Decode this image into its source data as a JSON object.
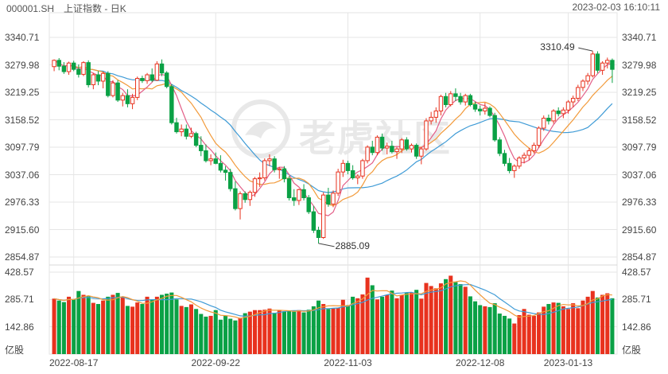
{
  "header": {
    "title": "000001.SH　上证指数 - 日K",
    "timestamp": "2023-02-03 16:10:11"
  },
  "colors": {
    "up": "#e8321e",
    "down": "#0aa145",
    "ma5": "#e35f88",
    "ma10": "#f29a3a",
    "ma20": "#3f9bd6",
    "grid": "#e6e6e6"
  },
  "watermark": {
    "text": "老虎社区",
    "icon": "tiger-logo-icon"
  },
  "chart_data": {
    "type": "candlestick",
    "price_axis": {
      "ticks": [
        "3340.71",
        "3279.98",
        "3219.25",
        "3158.52",
        "3097.79",
        "3037.06",
        "2976.33",
        "2915.60",
        "2854.87"
      ],
      "ylim": [
        2854.87,
        3340.71
      ]
    },
    "volume_axis": {
      "ticks": [
        "428.57",
        "285.71",
        "142.86"
      ],
      "unit": "亿股",
      "ylim": [
        0,
        428.57
      ]
    },
    "x_ticks": [
      "2022-08-17",
      "2022-09-22",
      "2022-11-03",
      "2022-12-08",
      "2023-01-13"
    ],
    "annotations": [
      {
        "text": "3310.49",
        "price": 3310.49,
        "type": "max"
      },
      {
        "text": "2885.09",
        "price": 2885.09,
        "type": "min"
      }
    ],
    "ohlc": [
      [
        3276,
        3292,
        3266,
        3290
      ],
      [
        3290,
        3295,
        3268,
        3277
      ],
      [
        3277,
        3286,
        3260,
        3265
      ],
      [
        3265,
        3287,
        3258,
        3284
      ],
      [
        3284,
        3289,
        3266,
        3270
      ],
      [
        3270,
        3281,
        3252,
        3259
      ],
      [
        3259,
        3288,
        3255,
        3285
      ],
      [
        3285,
        3290,
        3230,
        3236
      ],
      [
        3236,
        3262,
        3226,
        3258
      ],
      [
        3258,
        3266,
        3235,
        3244
      ],
      [
        3244,
        3265,
        3228,
        3261
      ],
      [
        3261,
        3266,
        3208,
        3212
      ],
      [
        3212,
        3246,
        3208,
        3240
      ],
      [
        3240,
        3246,
        3198,
        3202
      ],
      [
        3202,
        3218,
        3188,
        3212
      ],
      [
        3212,
        3226,
        3186,
        3194
      ],
      [
        3194,
        3216,
        3182,
        3208
      ],
      [
        3208,
        3254,
        3202,
        3250
      ],
      [
        3250,
        3256,
        3240,
        3245
      ],
      [
        3245,
        3262,
        3238,
        3258
      ],
      [
        3258,
        3272,
        3242,
        3246
      ],
      [
        3246,
        3288,
        3244,
        3282
      ],
      [
        3282,
        3292,
        3255,
        3262
      ],
      [
        3262,
        3266,
        3228,
        3232
      ],
      [
        3232,
        3237,
        3148,
        3152
      ],
      [
        3152,
        3163,
        3128,
        3132
      ],
      [
        3132,
        3148,
        3122,
        3138
      ],
      [
        3138,
        3148,
        3115,
        3122
      ],
      [
        3122,
        3141,
        3118,
        3128
      ],
      [
        3128,
        3132,
        3098,
        3102
      ],
      [
        3102,
        3122,
        3078,
        3090
      ],
      [
        3090,
        3104,
        3064,
        3068
      ],
      [
        3068,
        3082,
        3058,
        3072
      ],
      [
        3072,
        3086,
        3060,
        3062
      ],
      [
        3062,
        3080,
        3042,
        3047
      ],
      [
        3047,
        3056,
        3024,
        3042
      ],
      [
        3042,
        3050,
        3000,
        3006
      ],
      [
        3006,
        3022,
        2958,
        2962
      ],
      [
        2962,
        3000,
        2938,
        2995
      ],
      [
        2995,
        3000,
        2975,
        2982
      ],
      [
        2982,
        3002,
        2968,
        2998
      ],
      [
        2998,
        3032,
        2988,
        3028
      ],
      [
        3028,
        3042,
        3010,
        3030
      ],
      [
        3030,
        3073,
        3024,
        3068
      ],
      [
        3068,
        3082,
        3056,
        3072
      ],
      [
        3072,
        3078,
        3042,
        3048
      ],
      [
        3048,
        3054,
        3028,
        3050
      ],
      [
        3050,
        3056,
        3020,
        3028
      ],
      [
        3028,
        3034,
        2980,
        2986
      ],
      [
        2986,
        3005,
        2968,
        2980
      ],
      [
        2980,
        3006,
        2970,
        3004
      ],
      [
        3004,
        3016,
        2980,
        2986
      ],
      [
        2986,
        2992,
        2950,
        2955
      ],
      [
        2955,
        2968,
        2908,
        2914
      ],
      [
        2914,
        2922,
        2885,
        2898
      ],
      [
        2898,
        2998,
        2895,
        2992
      ],
      [
        2992,
        3008,
        2966,
        2972
      ],
      [
        2972,
        3002,
        2965,
        2996
      ],
      [
        2996,
        3050,
        2990,
        3043
      ],
      [
        3043,
        3070,
        3032,
        3062
      ],
      [
        3062,
        3068,
        3038,
        3046
      ],
      [
        3046,
        3058,
        3026,
        3030
      ],
      [
        3030,
        3038,
        3016,
        3034
      ],
      [
        3034,
        3072,
        3028,
        3068
      ],
      [
        3068,
        3102,
        3062,
        3098
      ],
      [
        3098,
        3112,
        3080,
        3086
      ],
      [
        3086,
        3124,
        3080,
        3120
      ],
      [
        3120,
        3128,
        3090,
        3096
      ],
      [
        3096,
        3108,
        3082,
        3100
      ],
      [
        3100,
        3112,
        3084,
        3088
      ],
      [
        3088,
        3098,
        3072,
        3094
      ],
      [
        3094,
        3118,
        3085,
        3114
      ],
      [
        3114,
        3120,
        3090,
        3094
      ],
      [
        3094,
        3106,
        3086,
        3102
      ],
      [
        3102,
        3106,
        3072,
        3078
      ],
      [
        3078,
        3098,
        3060,
        3094
      ],
      [
        3094,
        3162,
        3090,
        3156
      ],
      [
        3156,
        3176,
        3148,
        3164
      ],
      [
        3164,
        3186,
        3152,
        3178
      ],
      [
        3178,
        3214,
        3168,
        3210
      ],
      [
        3210,
        3218,
        3186,
        3192
      ],
      [
        3192,
        3222,
        3188,
        3216
      ],
      [
        3216,
        3228,
        3200,
        3210
      ],
      [
        3210,
        3218,
        3192,
        3198
      ],
      [
        3198,
        3216,
        3190,
        3212
      ],
      [
        3212,
        3216,
        3188,
        3192
      ],
      [
        3192,
        3198,
        3176,
        3182
      ],
      [
        3182,
        3190,
        3168,
        3178
      ],
      [
        3178,
        3196,
        3170,
        3184
      ],
      [
        3184,
        3188,
        3164,
        3168
      ],
      [
        3168,
        3174,
        3110,
        3114
      ],
      [
        3114,
        3120,
        3078,
        3084
      ],
      [
        3084,
        3092,
        3056,
        3062
      ],
      [
        3062,
        3074,
        3040,
        3046
      ],
      [
        3046,
        3060,
        3030,
        3056
      ],
      [
        3056,
        3078,
        3050,
        3074
      ],
      [
        3074,
        3086,
        3062,
        3080
      ],
      [
        3080,
        3096,
        3070,
        3090
      ],
      [
        3090,
        3108,
        3084,
        3102
      ],
      [
        3102,
        3144,
        3096,
        3140
      ],
      [
        3140,
        3168,
        3134,
        3162
      ],
      [
        3162,
        3170,
        3148,
        3156
      ],
      [
        3156,
        3182,
        3150,
        3178
      ],
      [
        3178,
        3186,
        3166,
        3172
      ],
      [
        3172,
        3186,
        3162,
        3180
      ],
      [
        3180,
        3202,
        3172,
        3198
      ],
      [
        3198,
        3212,
        3186,
        3206
      ],
      [
        3206,
        3236,
        3200,
        3230
      ],
      [
        3230,
        3248,
        3222,
        3244
      ],
      [
        3244,
        3262,
        3236,
        3256
      ],
      [
        3256,
        3310,
        3252,
        3304
      ],
      [
        3304,
        3310,
        3262,
        3268
      ],
      [
        3268,
        3288,
        3258,
        3284
      ],
      [
        3284,
        3296,
        3272,
        3290
      ],
      [
        3290,
        3294,
        3240,
        3270
      ]
    ],
    "volume": [
      290,
      280,
      272,
      300,
      286,
      330,
      310,
      302,
      268,
      262,
      280,
      300,
      310,
      320,
      296,
      252,
      248,
      270,
      262,
      300,
      286,
      300,
      310,
      316,
      322,
      286,
      252,
      246,
      260,
      236,
      210,
      196,
      200,
      230,
      180,
      200,
      185,
      176,
      190,
      214,
      222,
      230,
      230,
      232,
      238,
      216,
      230,
      224,
      226,
      222,
      230,
      218,
      232,
      250,
      280,
      262,
      236,
      240,
      242,
      284,
      256,
      300,
      292,
      312,
      400,
      360,
      286,
      300,
      310,
      332,
      292,
      310,
      320,
      322,
      336,
      290,
      372,
      356,
      344,
      370,
      392,
      410,
      376,
      366,
      352,
      302,
      276,
      256,
      250,
      246,
      266,
      212,
      200,
      186,
      160,
      204,
      236,
      206,
      200,
      218,
      248,
      262,
      270,
      268,
      250,
      236,
      266,
      240,
      280,
      300,
      330,
      296,
      310,
      318,
      292
    ]
  }
}
